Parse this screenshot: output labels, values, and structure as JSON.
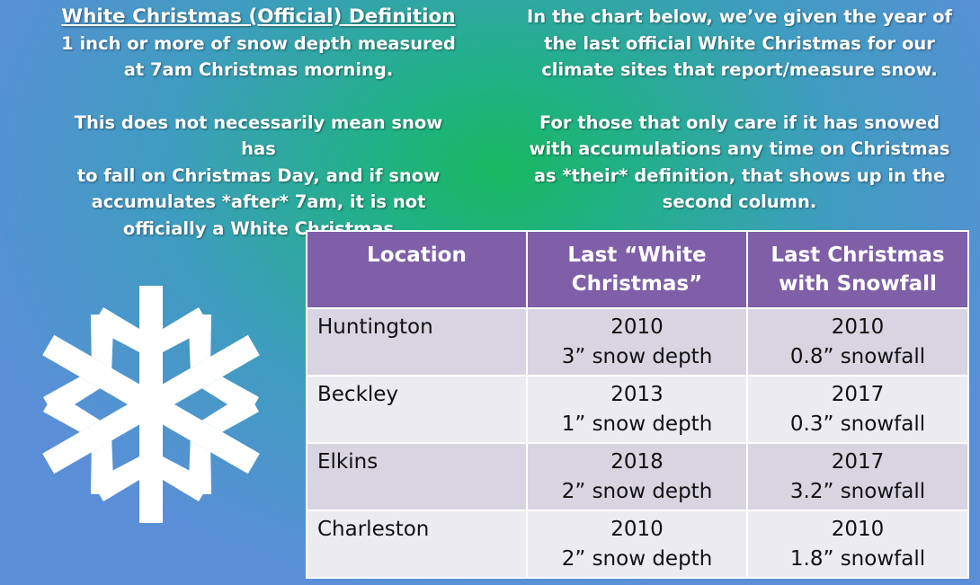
{
  "left_panel": {
    "title": "White Christmas (Official) Definition",
    "definition": [
      "1 inch or more of snow depth measured",
      "at 7am Christmas morning."
    ],
    "note": [
      "This does not necessarily mean snow has",
      "to fall on Christmas Day, and if snow",
      "accumulates *after* 7am, it is not",
      "officially a White Christmas"
    ]
  },
  "right_panel": {
    "para1": [
      "In the chart below, we’ve given the year of",
      "the last official White Christmas for our",
      "climate sites that report/measure snow."
    ],
    "para2": [
      "For those that only care if it has snowed",
      "with accumulations any time on Christmas",
      "as *their* definition, that shows up in the",
      "second column."
    ]
  },
  "decor": {
    "snowflake_icon": "snowflake-icon",
    "snowflake_color": "#ffffff"
  },
  "colors": {
    "header_bg": "#7f5fa8",
    "row_odd": "#d8d4e2",
    "row_even": "#ecebf1"
  },
  "table": {
    "headers": {
      "location": "Location",
      "white_christmas": [
        "Last “White",
        "Christmas”"
      ],
      "snowfall": [
        "Last Christmas with",
        "Snowfall"
      ]
    },
    "rows": [
      {
        "location": "Huntington",
        "wc_year": "2010",
        "wc_detail": "3” snow depth",
        "sf_year": "2010",
        "sf_detail": "0.8” snowfall"
      },
      {
        "location": "Beckley",
        "wc_year": "2013",
        "wc_detail": "1” snow depth",
        "sf_year": "2017",
        "sf_detail": "0.3” snowfall"
      },
      {
        "location": "Elkins",
        "wc_year": "2018",
        "wc_detail": "2” snow depth",
        "sf_year": "2017",
        "sf_detail": "3.2” snowfall"
      },
      {
        "location": "Charleston",
        "wc_year": "2010",
        "wc_detail": "2” snow depth",
        "sf_year": "2010",
        "sf_detail": "1.8” snowfall"
      }
    ]
  }
}
